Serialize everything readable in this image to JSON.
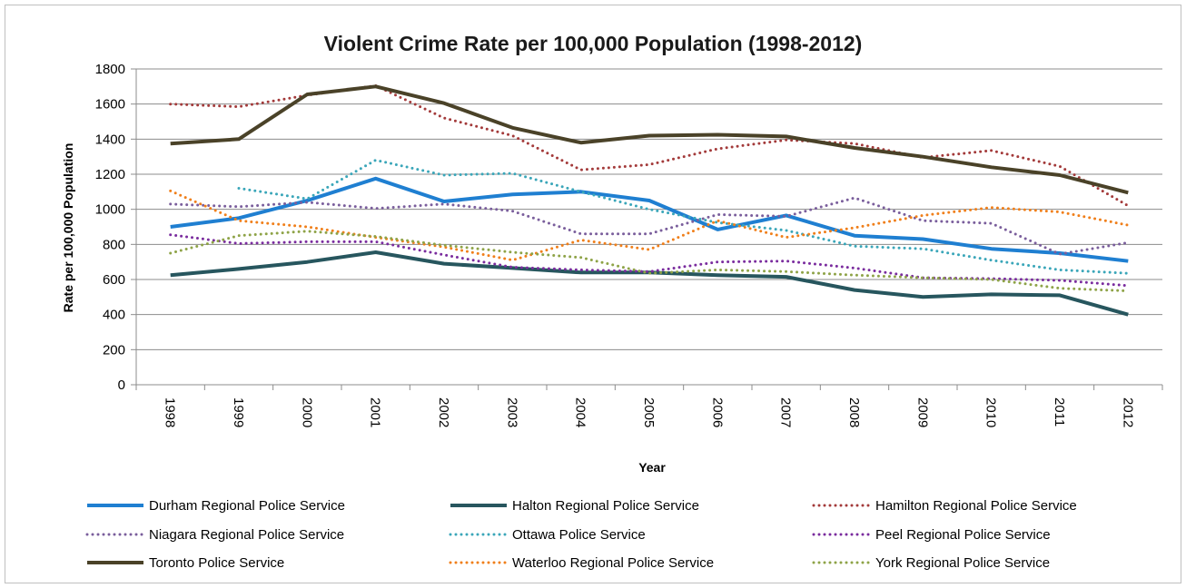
{
  "chart_data": {
    "type": "line",
    "title": "Violent Crime Rate per 100,000 Population (1998-2012)",
    "xlabel": "Year",
    "ylabel": "Rate per 100,000 Population",
    "ylim": [
      0,
      1800
    ],
    "yticks": [
      0,
      200,
      400,
      600,
      800,
      1000,
      1200,
      1400,
      1600,
      1800
    ],
    "grid": true,
    "legend_position": "bottom",
    "categories": [
      "1998",
      "1999",
      "2000",
      "2001",
      "2002",
      "2003",
      "2004",
      "2005",
      "2006",
      "2007",
      "2008",
      "2009",
      "2010",
      "2011",
      "2012"
    ],
    "series": [
      {
        "name": "Durham Regional Police Service",
        "color": "#1f7fd1",
        "style": "solid",
        "values": [
          900,
          950,
          1050,
          1175,
          1045,
          1085,
          1100,
          1050,
          885,
          965,
          850,
          830,
          775,
          750,
          705
        ]
      },
      {
        "name": "Halton Regional Police Service",
        "color": "#27565e",
        "style": "solid",
        "values": [
          625,
          660,
          700,
          755,
          690,
          665,
          640,
          640,
          625,
          615,
          540,
          500,
          515,
          510,
          400
        ]
      },
      {
        "name": "Hamilton Regional Police Service",
        "color": "#a33a3a",
        "style": "dotted",
        "values": [
          1600,
          1585,
          1650,
          1705,
          1520,
          1420,
          1225,
          1255,
          1345,
          1395,
          1375,
          1295,
          1335,
          1245,
          1020
        ]
      },
      {
        "name": "Niagara Regional Police Service",
        "color": "#7a5e9c",
        "style": "dotted",
        "values": [
          1030,
          1015,
          1040,
          1005,
          1030,
          990,
          860,
          860,
          970,
          960,
          1065,
          935,
          920,
          745,
          810
        ]
      },
      {
        "name": "Ottawa Police Service",
        "color": "#3aa6b9",
        "style": "dotted",
        "values": [
          null,
          1120,
          1060,
          1280,
          1195,
          1205,
          1100,
          1000,
          925,
          880,
          790,
          775,
          710,
          655,
          635
        ]
      },
      {
        "name": "Peel Regional Police Service",
        "color": "#7a2c9e",
        "style": "dotted",
        "values": [
          855,
          805,
          815,
          815,
          740,
          670,
          655,
          645,
          700,
          705,
          665,
          610,
          605,
          595,
          565
        ]
      },
      {
        "name": "Toronto Police Service",
        "color": "#4a4228",
        "style": "solid",
        "values": [
          1375,
          1400,
          1655,
          1700,
          1605,
          1465,
          1380,
          1420,
          1425,
          1415,
          1350,
          1300,
          1240,
          1195,
          1095
        ]
      },
      {
        "name": "Waterloo Regional Police Service",
        "color": "#f07f1a",
        "style": "dotted",
        "values": [
          1105,
          935,
          900,
          840,
          785,
          710,
          825,
          770,
          935,
          840,
          895,
          965,
          1010,
          985,
          910
        ]
      },
      {
        "name": "York Regional Police Service",
        "color": "#8ea347",
        "style": "dotted",
        "values": [
          750,
          850,
          875,
          845,
          795,
          755,
          725,
          635,
          655,
          645,
          625,
          610,
          600,
          550,
          535
        ]
      }
    ]
  }
}
